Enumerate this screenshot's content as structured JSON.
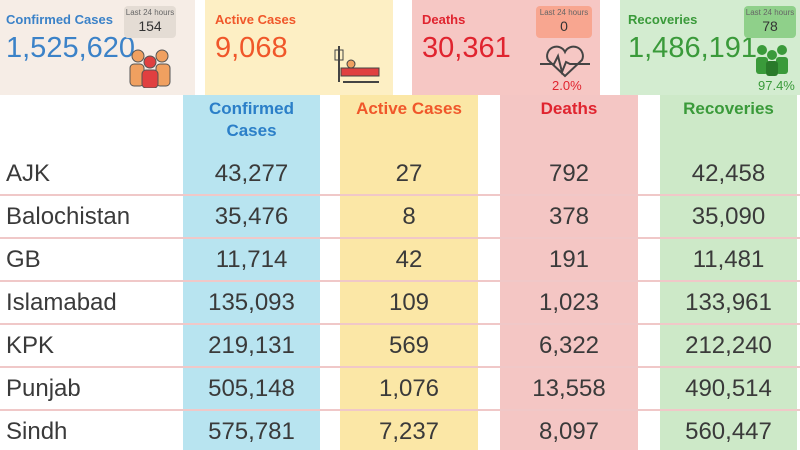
{
  "cards": [
    {
      "title": "Confirmed Cases",
      "value": "1,525,620",
      "last24_label": "Last 24 hours",
      "last24_value": "154"
    },
    {
      "title": "Active Cases",
      "value": "9,068"
    },
    {
      "title": "Deaths",
      "value": "30,361",
      "last24_label": "Last 24 hours",
      "last24_value": "0",
      "percent": "2.0%"
    },
    {
      "title": "Recoveries",
      "value": "1,486,191",
      "last24_label": "Last 24 hours",
      "last24_value": "78",
      "percent": "97.4%"
    }
  ],
  "table": {
    "headers": [
      "Confirmed Cases",
      "Active Cases",
      "Deaths",
      "Recoveries"
    ],
    "rows": [
      [
        "AJK",
        "43,277",
        "27",
        "792",
        "42,458"
      ],
      [
        "Balochistan",
        "35,476",
        "8",
        "378",
        "35,090"
      ],
      [
        "GB",
        "11,714",
        "42",
        "191",
        "11,481"
      ],
      [
        "Islamabad",
        "135,093",
        "109",
        "1,023",
        "133,961"
      ],
      [
        "KPK",
        "219,131",
        "569",
        "6,322",
        "212,240"
      ],
      [
        "Punjab",
        "505,148",
        "1,076",
        "13,558",
        "490,514"
      ],
      [
        "Sindh",
        "575,781",
        "7,237",
        "8,097",
        "560,447"
      ]
    ]
  }
}
